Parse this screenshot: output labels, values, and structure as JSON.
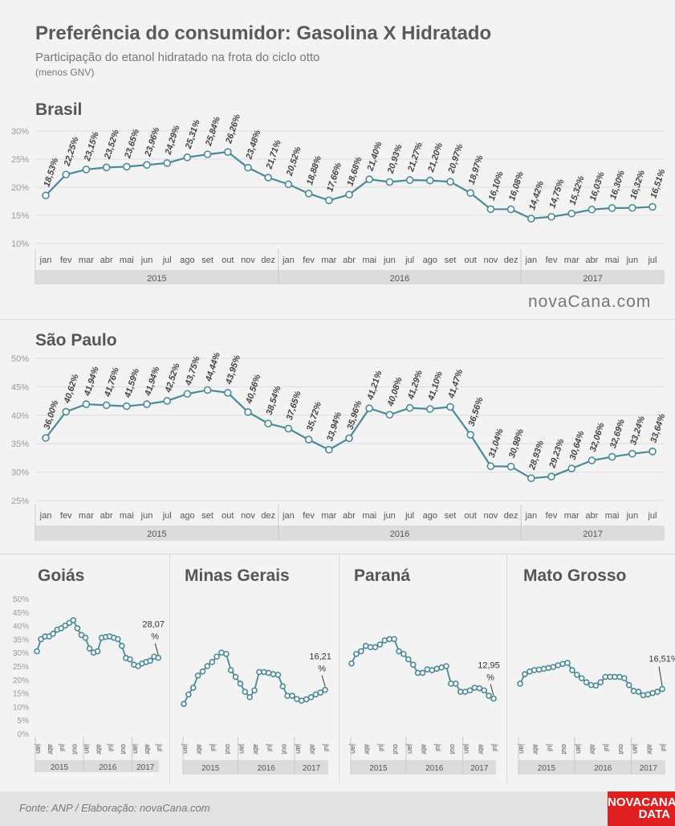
{
  "header": {
    "title": "Preferência do consumidor: Gasolina X Hidratado",
    "subtitle": "Participação do etanol hidratado na frota do ciclo otto",
    "note": "(menos GNV)"
  },
  "logo": "novaCana.com",
  "footer": {
    "source": "Fonte: ANP  / Elaboração: novaCana.com",
    "badge_line1": "NOVACANA",
    "badge_line2": "DATA"
  },
  "colors": {
    "line": "#4a8a98",
    "marker_fill": "#ffffff",
    "axis_band": "#dcdcdc",
    "grid": "#dddddd",
    "badge": "#e02020"
  },
  "chart_data": [
    {
      "id": "brasil",
      "title": "Brasil",
      "type": "line",
      "months": [
        "jan",
        "fev",
        "mar",
        "abr",
        "mai",
        "jun",
        "jul",
        "ago",
        "set",
        "out",
        "nov",
        "dez",
        "jan",
        "fev",
        "mar",
        "abr",
        "mai",
        "jun",
        "jul",
        "ago",
        "set",
        "out",
        "nov",
        "dez",
        "jan",
        "fev",
        "mar",
        "abr",
        "mai",
        "jun",
        "jul"
      ],
      "years": [
        {
          "label": "2015",
          "count": 12
        },
        {
          "label": "2016",
          "count": 12
        },
        {
          "label": "2017",
          "count": 7
        }
      ],
      "values": [
        18.53,
        22.25,
        23.15,
        23.52,
        23.65,
        23.96,
        24.29,
        25.31,
        25.84,
        26.26,
        23.48,
        21.71,
        20.52,
        18.88,
        17.66,
        18.68,
        21.4,
        20.93,
        21.27,
        21.2,
        20.97,
        18.97,
        16.1,
        16.08,
        14.42,
        14.75,
        15.32,
        16.03,
        16.3,
        16.32,
        16.51
      ],
      "labels": [
        "18,53%",
        "22,25%",
        "23,15%",
        "23,52%",
        "23,65%",
        "23,96%",
        "24,29%",
        "25,31%",
        "25,84%",
        "26,26%",
        "23,48%",
        "21,71%",
        "20,52%",
        "18,88%",
        "17,66%",
        "18,68%",
        "21,40%",
        "20,93%",
        "21,27%",
        "21,20%",
        "20,97%",
        "18,97%",
        "16,10%",
        "16,08%",
        "14,42%",
        "14,75%",
        "15,32%",
        "16,03%",
        "16,30%",
        "16,32%",
        "16,51%"
      ],
      "yticks": [
        "10%",
        "15%",
        "20%",
        "25%",
        "30%"
      ],
      "ylim": [
        10,
        30
      ],
      "grid": true
    },
    {
      "id": "sao-paulo",
      "title": "São Paulo",
      "type": "line",
      "months": [
        "jan",
        "fev",
        "mar",
        "abr",
        "mai",
        "jun",
        "jul",
        "ago",
        "set",
        "out",
        "nov",
        "dez",
        "jan",
        "fev",
        "mar",
        "abr",
        "mai",
        "jun",
        "jul",
        "ago",
        "set",
        "out",
        "nov",
        "dez",
        "jan",
        "fev",
        "mar",
        "abr",
        "mai",
        "jun",
        "jul"
      ],
      "years": [
        {
          "label": "2015",
          "count": 12
        },
        {
          "label": "2016",
          "count": 12
        },
        {
          "label": "2017",
          "count": 7
        }
      ],
      "values": [
        36.0,
        40.62,
        41.94,
        41.76,
        41.59,
        41.94,
        42.52,
        43.75,
        44.44,
        43.95,
        40.56,
        38.54,
        37.65,
        35.72,
        33.94,
        35.96,
        41.21,
        40.08,
        41.29,
        41.1,
        41.47,
        36.56,
        31.04,
        30.98,
        28.93,
        29.23,
        30.64,
        32.06,
        32.69,
        33.24,
        33.64
      ],
      "labels": [
        "36,00%",
        "40,62%",
        "41,94%",
        "41,76%",
        "41,59%",
        "41,94%",
        "42,52%",
        "43,75%",
        "44,44%",
        "43,95%",
        "40,56%",
        "38,54%",
        "37,65%",
        "35,72%",
        "33,94%",
        "35,96%",
        "41,21%",
        "40,08%",
        "41,29%",
        "41,10%",
        "41,47%",
        "36,56%",
        "31,04%",
        "30,98%",
        "28,93%",
        "29,23%",
        "30,64%",
        "32,06%",
        "32,69%",
        "33,24%",
        "33,64%"
      ],
      "yticks": [
        "25%",
        "30%",
        "35%",
        "40%",
        "45%",
        "50%"
      ],
      "ylim": [
        25,
        50
      ],
      "grid": true
    },
    {
      "id": "goias",
      "title": "Goiás",
      "type": "line",
      "months": [
        "jan",
        "abr",
        "jul",
        "out",
        "jan",
        "abr",
        "jul",
        "out",
        "jan",
        "abr",
        "jul"
      ],
      "years": [
        {
          "label": "2015",
          "count": 12
        },
        {
          "label": "2016",
          "count": 12
        },
        {
          "label": "2017",
          "count": 7
        }
      ],
      "values": [
        30.5,
        35,
        36,
        36,
        37,
        38.5,
        39,
        40,
        41,
        42,
        39,
        36.5,
        35.5,
        31.5,
        30,
        30.5,
        35.5,
        35.8,
        36,
        35.5,
        35,
        32.5,
        28,
        27.5,
        25.5,
        25,
        26,
        26.5,
        27,
        28.5,
        28.07
      ],
      "last_label": "28,07 %",
      "yticks": [
        "0%",
        "5%",
        "10%",
        "15%",
        "20%",
        "25%",
        "30%",
        "35%",
        "40%",
        "45%",
        "50%"
      ],
      "ylim": [
        0,
        50
      ],
      "grid": false
    },
    {
      "id": "minas-gerais",
      "title": "Minas Gerais",
      "type": "line",
      "months": [
        "jan",
        "abr",
        "jul",
        "out",
        "jan",
        "abr",
        "jul",
        "out",
        "jan",
        "abr",
        "jul"
      ],
      "years": [
        {
          "label": "2015",
          "count": 12
        },
        {
          "label": "2016",
          "count": 12
        },
        {
          "label": "2017",
          "count": 7
        }
      ],
      "values": [
        11,
        14.5,
        17,
        21.5,
        23,
        25,
        26.5,
        28.5,
        30,
        29.5,
        23.5,
        21,
        18.5,
        15.5,
        13.5,
        16,
        22.8,
        22.8,
        22.5,
        22,
        21.8,
        17.5,
        14,
        14,
        12.8,
        12.2,
        12.7,
        13.5,
        14.5,
        15.2,
        16.21
      ],
      "last_label": "16,21 %",
      "yticks": [],
      "ylim": [
        0,
        50
      ],
      "grid": false
    },
    {
      "id": "parana",
      "title": "Paraná",
      "type": "line",
      "months": [
        "jan",
        "abr",
        "jul",
        "out",
        "jan",
        "abr",
        "jul",
        "out",
        "jan",
        "abr",
        "jul"
      ],
      "years": [
        {
          "label": "2015",
          "count": 12
        },
        {
          "label": "2016",
          "count": 12
        },
        {
          "label": "2017",
          "count": 7
        }
      ],
      "values": [
        26,
        29.5,
        30.5,
        32.5,
        32,
        32,
        33,
        34.5,
        35,
        35,
        30.5,
        29.5,
        27.5,
        25.5,
        22.5,
        22.5,
        23.8,
        23.5,
        24,
        24.5,
        25,
        18.5,
        18.5,
        15.5,
        15.5,
        16,
        17,
        16.8,
        16,
        14,
        12.95
      ],
      "last_label": "12,95 %",
      "yticks": [],
      "ylim": [
        0,
        50
      ],
      "grid": false
    },
    {
      "id": "mato-grosso",
      "title": "Mato Grosso",
      "type": "line",
      "months": [
        "jan",
        "abr",
        "jul",
        "out",
        "jan",
        "abr",
        "jul",
        "out",
        "jan",
        "abr",
        "jul"
      ],
      "years": [
        {
          "label": "2015",
          "count": 12
        },
        {
          "label": "2016",
          "count": 12
        },
        {
          "label": "2017",
          "count": 7
        }
      ],
      "values": [
        18.5,
        22,
        23,
        23.5,
        23.7,
        24,
        24.3,
        24.7,
        25.3,
        25.8,
        26.2,
        23.5,
        21.8,
        20.5,
        19,
        18,
        17.8,
        19,
        21,
        21,
        21,
        21,
        20.5,
        18,
        15.8,
        15.5,
        14.2,
        14.5,
        15,
        15.5,
        16.51
      ],
      "last_label": "16,51%",
      "yticks": [],
      "ylim": [
        0,
        50
      ],
      "grid": false
    }
  ]
}
